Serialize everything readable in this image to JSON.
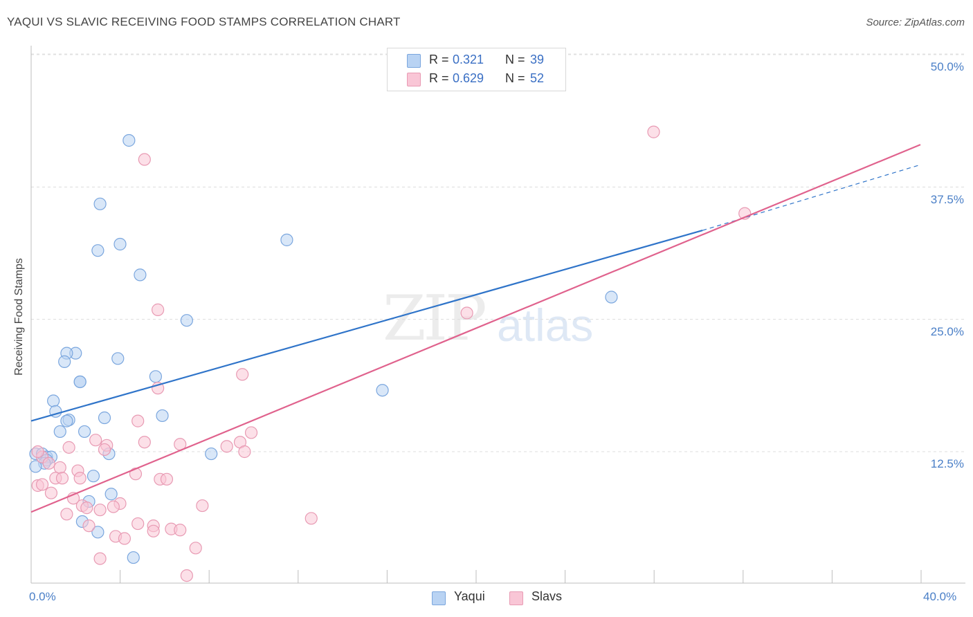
{
  "title": "YAQUI VS SLAVIC RECEIVING FOOD STAMPS CORRELATION CHART",
  "source": "Source: ZipAtlas.com",
  "watermark": {
    "zip": "ZIP",
    "atlas": "atlas"
  },
  "legend_top": [
    {
      "r_label": "R =",
      "r_value": "0.321",
      "n_label": "N =",
      "n_value": "39"
    },
    {
      "r_label": "R =",
      "r_value": "0.629",
      "n_label": "N =",
      "n_value": "52"
    }
  ],
  "legend_bottom": [
    {
      "label": "Yaqui"
    },
    {
      "label": "Slavs"
    }
  ],
  "colors": {
    "yaqui_fill": "#b9d3f3",
    "yaqui_stroke": "#7aa6de",
    "yaqui_line": "#2f74c9",
    "slavs_fill": "#f9c6d6",
    "slavs_stroke": "#e89ab3",
    "slavs_line": "#e0628d",
    "tick_text": "#4a7fc7"
  },
  "chart_data": {
    "type": "scatter",
    "title": "YAQUI VS SLAVIC RECEIVING FOOD STAMPS CORRELATION CHART",
    "xlabel": "",
    "ylabel": "Receiving Food Stamps",
    "xlim": [
      0,
      40
    ],
    "ylim": [
      0,
      51
    ],
    "x_tick_labels": [
      "0.0%",
      "40.0%"
    ],
    "y_ticks": [
      12.5,
      25.0,
      37.5,
      50.0
    ],
    "y_tick_labels": [
      "12.5%",
      "25.0%",
      "37.5%",
      "50.0%"
    ],
    "grid": true,
    "legend": "top-center",
    "series": [
      {
        "name": "Yaqui",
        "R": 0.321,
        "N": 39,
        "trend": {
          "x0": 0,
          "y0": 15.4,
          "x1": 30.2,
          "y1": 33.4,
          "dash_x1": 40,
          "dash_y1": 39.6
        },
        "points": [
          [
            4.4,
            41.9
          ],
          [
            3.1,
            35.9
          ],
          [
            4.0,
            32.1
          ],
          [
            3.0,
            31.5
          ],
          [
            11.5,
            32.5
          ],
          [
            4.9,
            29.2
          ],
          [
            26.1,
            27.1
          ],
          [
            7.0,
            24.9
          ],
          [
            2.0,
            21.8
          ],
          [
            1.6,
            21.8
          ],
          [
            1.5,
            21.0
          ],
          [
            3.9,
            21.3
          ],
          [
            5.6,
            19.6
          ],
          [
            2.2,
            19.1
          ],
          [
            2.2,
            19.1
          ],
          [
            15.8,
            18.3
          ],
          [
            1.0,
            17.3
          ],
          [
            1.1,
            16.3
          ],
          [
            1.7,
            15.5
          ],
          [
            3.3,
            15.7
          ],
          [
            5.9,
            15.9
          ],
          [
            1.6,
            15.4
          ],
          [
            2.4,
            14.4
          ],
          [
            1.3,
            14.4
          ],
          [
            0.2,
            12.3
          ],
          [
            0.5,
            12.3
          ],
          [
            0.7,
            12.0
          ],
          [
            3.5,
            12.3
          ],
          [
            8.1,
            12.3
          ],
          [
            0.9,
            12.0
          ],
          [
            0.7,
            11.7
          ],
          [
            0.6,
            11.4
          ],
          [
            0.2,
            11.1
          ],
          [
            2.8,
            10.2
          ],
          [
            3.6,
            8.5
          ],
          [
            2.6,
            7.8
          ],
          [
            2.3,
            5.9
          ],
          [
            3.0,
            4.9
          ],
          [
            4.6,
            2.5
          ]
        ]
      },
      {
        "name": "Slavs",
        "R": 0.629,
        "N": 52,
        "trend": {
          "x0": 0,
          "y0": 6.8,
          "x1": 40,
          "y1": 41.5
        },
        "points": [
          [
            28.0,
            42.7
          ],
          [
            5.1,
            40.1
          ],
          [
            32.1,
            35.0
          ],
          [
            5.7,
            25.9
          ],
          [
            19.6,
            25.6
          ],
          [
            9.5,
            19.8
          ],
          [
            5.7,
            18.5
          ],
          [
            4.8,
            15.4
          ],
          [
            9.9,
            14.3
          ],
          [
            2.9,
            13.6
          ],
          [
            5.1,
            13.4
          ],
          [
            3.4,
            13.1
          ],
          [
            6.7,
            13.2
          ],
          [
            9.4,
            13.4
          ],
          [
            8.8,
            13.0
          ],
          [
            3.3,
            12.7
          ],
          [
            9.6,
            12.5
          ],
          [
            1.7,
            12.9
          ],
          [
            0.5,
            12.0
          ],
          [
            0.8,
            11.4
          ],
          [
            1.3,
            11.0
          ],
          [
            2.1,
            10.7
          ],
          [
            4.7,
            10.4
          ],
          [
            1.1,
            10.0
          ],
          [
            1.4,
            10.0
          ],
          [
            2.2,
            10.0
          ],
          [
            5.8,
            9.9
          ],
          [
            6.1,
            9.9
          ],
          [
            0.3,
            9.3
          ],
          [
            0.5,
            9.4
          ],
          [
            0.9,
            8.6
          ],
          [
            1.9,
            8.1
          ],
          [
            4.0,
            7.6
          ],
          [
            7.7,
            7.4
          ],
          [
            2.3,
            7.4
          ],
          [
            2.5,
            7.2
          ],
          [
            3.1,
            7.0
          ],
          [
            3.7,
            7.3
          ],
          [
            1.6,
            6.6
          ],
          [
            12.6,
            6.2
          ],
          [
            4.8,
            5.7
          ],
          [
            5.5,
            5.5
          ],
          [
            2.6,
            5.5
          ],
          [
            6.3,
            5.2
          ],
          [
            6.7,
            5.1
          ],
          [
            5.5,
            5.0
          ],
          [
            3.8,
            4.5
          ],
          [
            4.2,
            4.3
          ],
          [
            7.4,
            3.4
          ],
          [
            3.1,
            2.4
          ],
          [
            7.0,
            0.8
          ],
          [
            0.3,
            12.5
          ]
        ]
      }
    ]
  }
}
